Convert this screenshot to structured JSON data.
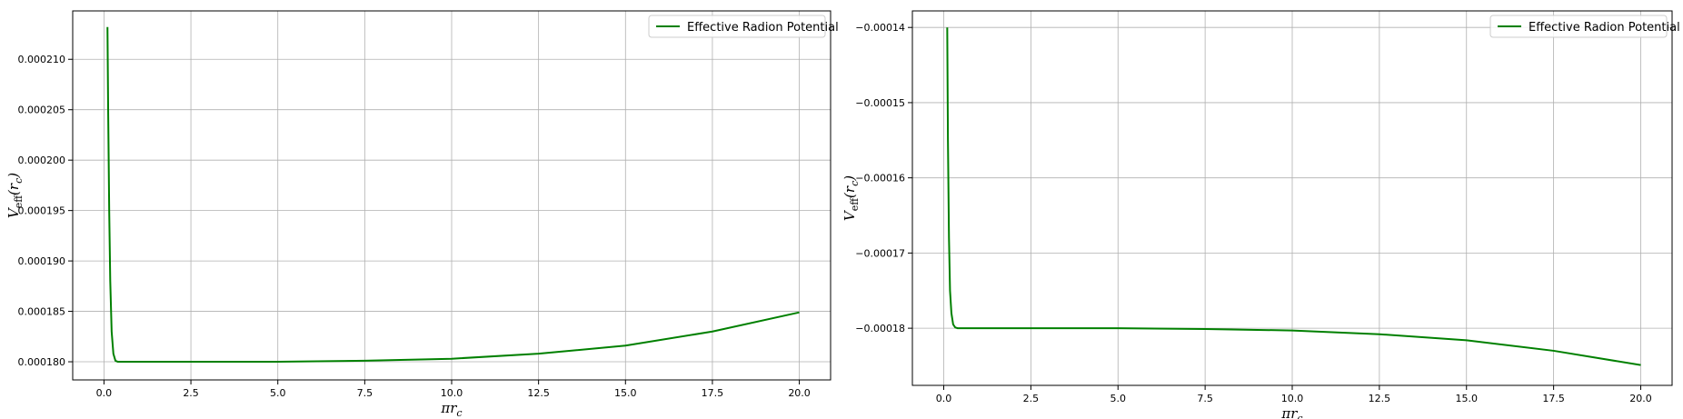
{
  "chart_data": [
    {
      "type": "line",
      "xlim": [
        -0.9,
        20.9
      ],
      "ylim": [
        0.0001782,
        0.0002148
      ],
      "x_ticks": [
        0.0,
        2.5,
        5.0,
        7.5,
        10.0,
        12.5,
        15.0,
        17.5,
        20.0
      ],
      "x_tick_labels": [
        "0.0",
        "2.5",
        "5.0",
        "7.5",
        "10.0",
        "12.5",
        "15.0",
        "17.5",
        "20.0"
      ],
      "y_ticks": [
        0.00018,
        0.000185,
        0.00019,
        0.000195,
        0.0002,
        0.000205,
        0.00021
      ],
      "y_tick_labels": [
        "0.000180",
        "0.000185",
        "0.000190",
        "0.000195",
        "0.000200",
        "0.000205",
        "0.000210"
      ],
      "xlabel": "πr",
      "xlabel_sub": "c",
      "ylabel": "V",
      "ylabel_sub": "eff",
      "ylabel_arg": "(r",
      "ylabel_arg_sub": "c",
      "ylabel_close": ")",
      "grid": true,
      "legend_position": "top-right",
      "series": [
        {
          "name": "Effective Radion Potential",
          "color": "#008000",
          "x": [
            0.1,
            0.12,
            0.15,
            0.18,
            0.22,
            0.27,
            0.33,
            0.4,
            0.5,
            1.0,
            2.5,
            5.0,
            7.5,
            10.0,
            12.5,
            15.0,
            17.5,
            20.0
          ],
          "y": [
            0.0002132,
            0.000205,
            0.000195,
            0.000188,
            0.000183,
            0.0001808,
            0.0001801,
            0.00018,
            0.00018,
            0.00018,
            0.00018,
            0.00018,
            0.0001801,
            0.0001803,
            0.0001808,
            0.0001816,
            0.000183,
            0.0001849
          ]
        }
      ]
    },
    {
      "type": "line",
      "xlim": [
        -0.9,
        20.9
      ],
      "ylim": [
        -0.0001876,
        -0.0001378
      ],
      "x_ticks": [
        0.0,
        2.5,
        5.0,
        7.5,
        10.0,
        12.5,
        15.0,
        17.5,
        20.0
      ],
      "x_tick_labels": [
        "0.0",
        "2.5",
        "5.0",
        "7.5",
        "10.0",
        "12.5",
        "15.0",
        "17.5",
        "20.0"
      ],
      "y_ticks": [
        -0.00018,
        -0.00017,
        -0.00016,
        -0.00015,
        -0.00014
      ],
      "y_tick_labels": [
        "−0.00018",
        "−0.00017",
        "−0.00016",
        "−0.00015",
        "−0.00014"
      ],
      "xlabel": "πr",
      "xlabel_sub": "c",
      "ylabel": "V",
      "ylabel_sub": "eff",
      "ylabel_arg": "(r",
      "ylabel_arg_sub": "c",
      "ylabel_close": ")",
      "grid": true,
      "legend_position": "top-right",
      "series": [
        {
          "name": "Effective Radion Potential",
          "color": "#008000",
          "x": [
            0.1,
            0.12,
            0.15,
            0.18,
            0.22,
            0.27,
            0.33,
            0.4,
            0.5,
            1.0,
            2.5,
            5.0,
            7.5,
            10.0,
            12.5,
            15.0,
            17.5,
            20.0
          ],
          "y": [
            -0.00014,
            -0.000155,
            -0.000168,
            -0.000175,
            -0.000178,
            -0.0001795,
            -0.0001799,
            -0.00018,
            -0.00018,
            -0.00018,
            -0.00018,
            -0.00018,
            -0.0001801,
            -0.0001803,
            -0.0001808,
            -0.0001816,
            -0.000183,
            -0.0001849
          ]
        }
      ]
    }
  ]
}
